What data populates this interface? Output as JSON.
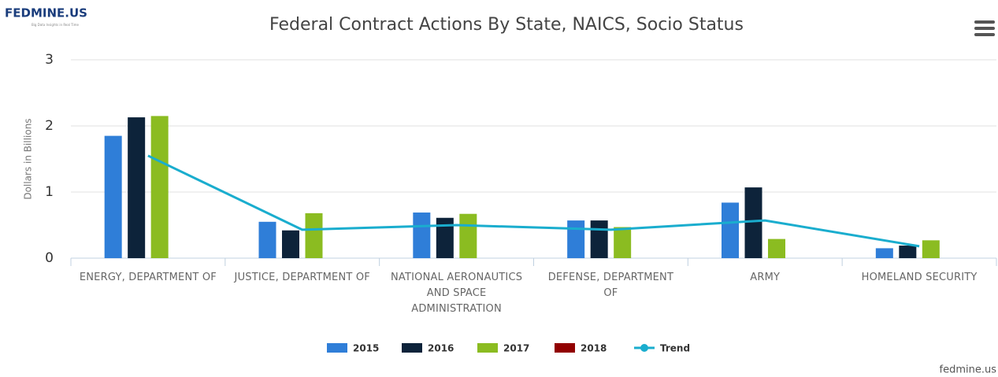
{
  "logo": "FEDMINE.US",
  "logo_tagline": "Big Data Insights in Real Time",
  "credit": "fedmine.us",
  "chart_data": {
    "type": "bar",
    "title": "Federal Contract Actions By State, NAICS, Socio Status",
    "y_label": "Dollars in Billions",
    "categories": [
      "ENERGY, DEPARTMENT OF",
      "JUSTICE, DEPARTMENT OF",
      "NATIONAL AERONAUTICS AND SPACE ADMINISTRATION",
      "DEFENSE, DEPARTMENT OF",
      "ARMY",
      "HOMELAND SECURITY"
    ],
    "series": [
      {
        "name": "2015",
        "color": "#2f7ed8",
        "values": [
          1.85,
          0.55,
          0.69,
          0.57,
          0.84,
          0.15
        ]
      },
      {
        "name": "2016",
        "color": "#0d233a",
        "values": [
          2.13,
          0.42,
          0.61,
          0.57,
          1.07,
          0.19
        ]
      },
      {
        "name": "2017",
        "color": "#8bbc21",
        "values": [
          2.15,
          0.68,
          0.67,
          0.47,
          0.29,
          0.27
        ]
      },
      {
        "name": "2018",
        "color": "#910000",
        "values": [
          null,
          null,
          null,
          null,
          null,
          null
        ]
      },
      {
        "name": "Trend",
        "type": "line",
        "color": "#1aadce",
        "values": [
          1.55,
          0.43,
          0.5,
          0.43,
          0.57,
          0.18
        ]
      }
    ],
    "ylim": [
      0,
      3
    ],
    "yticks": [
      0,
      1,
      2,
      3
    ],
    "grid": true
  }
}
